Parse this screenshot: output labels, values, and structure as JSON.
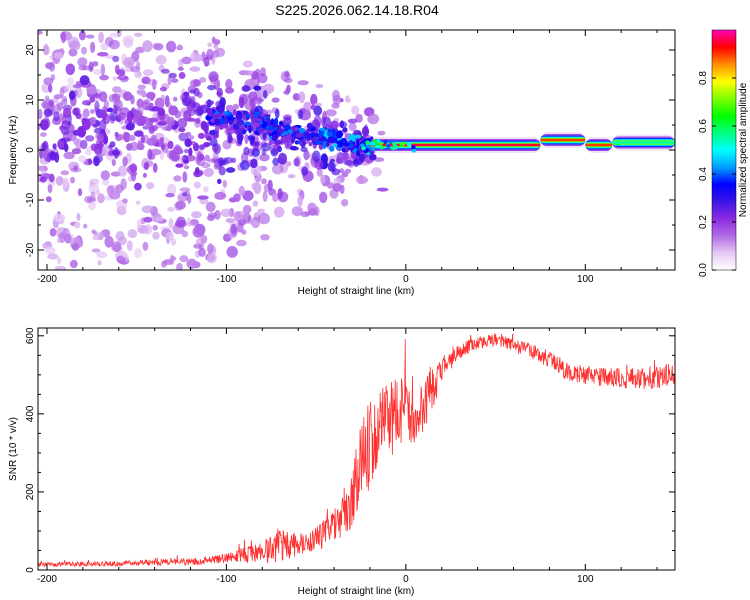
{
  "figure_title": "S225.2026.062.14.18.R04",
  "chart_data": [
    {
      "type": "heatmap",
      "title": "S225.2026.062.14.18.R04",
      "xlabel": "Height of straight line (km)",
      "ylabel": "Frequency (Hz)",
      "xlim": [
        -205,
        150
      ],
      "ylim": [
        -24,
        24
      ],
      "x_ticks": [
        "-200",
        "-100",
        "0",
        "100"
      ],
      "y_ticks": [
        "20",
        "10",
        "0",
        "-10",
        "-20"
      ],
      "x_tick_values": [
        -200,
        -100,
        0,
        100
      ],
      "y_tick_values": [
        20,
        10,
        0,
        -10,
        -20
      ],
      "colorbar": {
        "label": "Normalized spectral amplitude",
        "range": [
          0,
          1
        ],
        "ticks": [
          "0.0",
          "0.2",
          "0.4",
          "0.6",
          "0.8"
        ],
        "tick_values": [
          0.0,
          0.2,
          0.4,
          0.6,
          0.8
        ],
        "colormap": [
          "#ffffff",
          "#e6c8f5",
          "#b26be6",
          "#8a2be2",
          "#3c14e6",
          "#0000ff",
          "#00a0ff",
          "#00ffff",
          "#00ff7f",
          "#00ff00",
          "#7fff00",
          "#ffff00",
          "#ff8c00",
          "#ff0000",
          "#ff00b4"
        ]
      },
      "features": {
        "noise_region_x": [
          -205,
          -30
        ],
        "transition_x": [
          -110,
          -20
        ],
        "signal_band": [
          {
            "x_from": -20,
            "x_to": 75,
            "freq": 1.0,
            "amplitude": 0.95
          },
          {
            "x_from": 75,
            "x_to": 100,
            "freq": 2.0,
            "amplitude": 0.9
          },
          {
            "x_from": 100,
            "x_to": 115,
            "freq": 1.0,
            "amplitude": 0.9
          },
          {
            "x_from": 115,
            "x_to": 150,
            "freq": 1.5,
            "amplitude": 0.55
          }
        ]
      }
    },
    {
      "type": "line",
      "xlabel": "Height of straight line (km)",
      "ylabel": "SNR (10 * v/v)",
      "xlim": [
        -205,
        150
      ],
      "ylim": [
        0,
        620
      ],
      "x_ticks": [
        "-200",
        "-100",
        "0",
        "100"
      ],
      "y_ticks": [
        "600",
        "400",
        "200",
        "0"
      ],
      "x_tick_values": [
        -200,
        -100,
        0,
        100
      ],
      "y_tick_values": [
        600,
        400,
        200,
        0
      ],
      "color": "#ff3030",
      "x": [
        -205,
        -180,
        -160,
        -140,
        -120,
        -100,
        -80,
        -70,
        -60,
        -50,
        -40,
        -30,
        -25,
        -20,
        -15,
        -10,
        -5,
        0,
        5,
        10,
        15,
        20,
        30,
        40,
        50,
        60,
        70,
        80,
        90,
        100,
        110,
        120,
        130,
        140,
        150
      ],
      "y": [
        15,
        15,
        16,
        20,
        22,
        30,
        48,
        60,
        65,
        80,
        110,
        180,
        280,
        320,
        360,
        380,
        400,
        410,
        400,
        430,
        460,
        510,
        560,
        580,
        590,
        575,
        560,
        540,
        510,
        500,
        495,
        490,
        490,
        495,
        500
      ],
      "noise": [
        6,
        6,
        7,
        8,
        9,
        12,
        28,
        45,
        28,
        30,
        45,
        75,
        120,
        110,
        100,
        100,
        90,
        90,
        85,
        70,
        55,
        30,
        20,
        18,
        16,
        18,
        20,
        22,
        25,
        25,
        25,
        28,
        28,
        30,
        28
      ]
    }
  ]
}
